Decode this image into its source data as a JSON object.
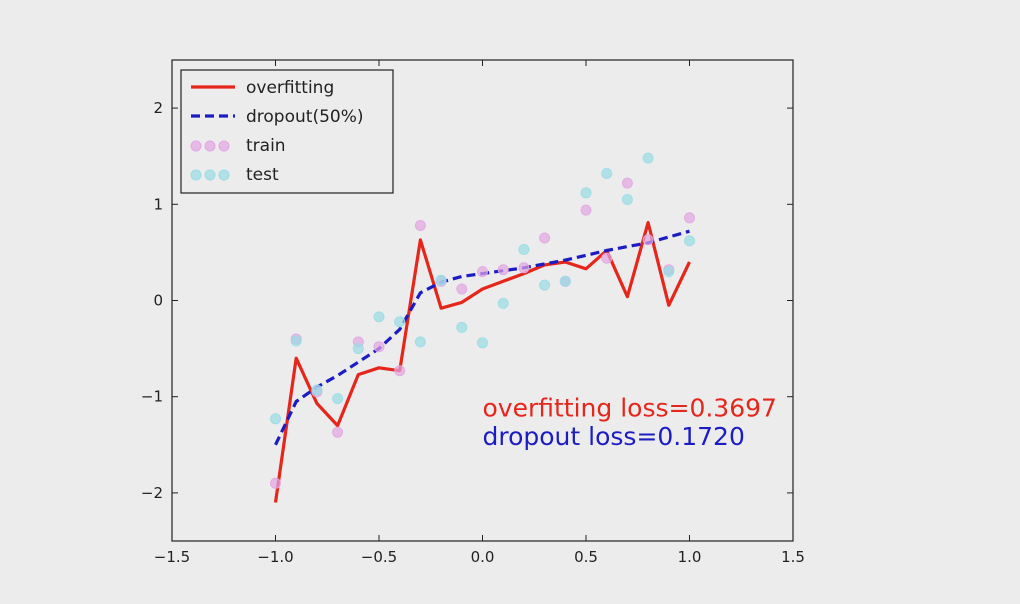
{
  "colors": {
    "background": "#ececec",
    "overfitting": "#e5261b",
    "dropout": "#1c1cc4",
    "train": "#e3a6e3",
    "test": "#99dde6"
  },
  "chart_data": {
    "type": "line",
    "xlim": [
      -1.5,
      1.5
    ],
    "ylim": [
      -2.5,
      2.5
    ],
    "x_ticks": [
      -1.5,
      -1.0,
      -0.5,
      0.0,
      0.5,
      1.0,
      1.5
    ],
    "x_tick_labels": [
      "−1.5",
      "−1.0",
      "−0.5",
      "0.0",
      "0.5",
      "1.0",
      "1.5"
    ],
    "y_ticks": [
      -2,
      -1,
      0,
      1,
      2
    ],
    "y_tick_labels": [
      "−2",
      "−1",
      "0",
      "1",
      "2"
    ],
    "grid": false,
    "legend_position": "top-left",
    "legend": [
      {
        "key": "overfitting",
        "label": "overfitting"
      },
      {
        "key": "dropout",
        "label": "dropout(50%)"
      },
      {
        "key": "train",
        "label": "train"
      },
      {
        "key": "test",
        "label": "test"
      }
    ],
    "series": [
      {
        "key": "overfitting",
        "name": "overfitting",
        "x": [
          -1.0,
          -0.9,
          -0.8,
          -0.7,
          -0.6,
          -0.5,
          -0.4,
          -0.3,
          -0.2,
          -0.1,
          0.0,
          0.1,
          0.2,
          0.3,
          0.4,
          0.5,
          0.6,
          0.7,
          0.8,
          0.9,
          1.0
        ],
        "y": [
          -2.1,
          -0.6,
          -1.07,
          -1.3,
          -0.77,
          -0.7,
          -0.73,
          0.63,
          -0.08,
          -0.02,
          0.12,
          0.2,
          0.28,
          0.37,
          0.4,
          0.33,
          0.52,
          0.04,
          0.81,
          -0.05,
          0.4
        ]
      },
      {
        "key": "dropout",
        "name": "dropout(50%)",
        "x": [
          -1.0,
          -0.9,
          -0.8,
          -0.7,
          -0.6,
          -0.5,
          -0.4,
          -0.3,
          -0.2,
          -0.1,
          0.0,
          0.1,
          0.2,
          0.3,
          0.4,
          0.5,
          0.6,
          0.7,
          0.8,
          0.9,
          1.0
        ],
        "y": [
          -1.5,
          -1.05,
          -0.9,
          -0.78,
          -0.64,
          -0.5,
          -0.3,
          0.08,
          0.19,
          0.25,
          0.28,
          0.31,
          0.34,
          0.38,
          0.42,
          0.47,
          0.52,
          0.56,
          0.6,
          0.66,
          0.72
        ]
      }
    ],
    "scatter": [
      {
        "key": "train",
        "name": "train",
        "x": [
          -1.0,
          -0.9,
          -0.8,
          -0.7,
          -0.6,
          -0.5,
          -0.4,
          -0.3,
          -0.2,
          -0.1,
          0.0,
          0.1,
          0.2,
          0.3,
          0.4,
          0.5,
          0.6,
          0.7,
          0.8,
          0.9,
          1.0
        ],
        "y": [
          -1.9,
          -0.4,
          -0.95,
          -1.37,
          -0.43,
          -0.48,
          -0.73,
          0.78,
          0.2,
          0.12,
          0.3,
          0.32,
          0.34,
          0.65,
          0.2,
          0.94,
          0.44,
          1.22,
          0.63,
          0.32,
          0.86
        ]
      },
      {
        "key": "test",
        "name": "test",
        "x": [
          -1.0,
          -0.9,
          -0.8,
          -0.7,
          -0.6,
          -0.5,
          -0.4,
          -0.3,
          -0.2,
          -0.1,
          0.0,
          0.1,
          0.2,
          0.3,
          0.4,
          0.5,
          0.6,
          0.7,
          0.8,
          0.9,
          1.0
        ],
        "y": [
          -1.23,
          -0.42,
          -0.93,
          -1.02,
          -0.5,
          -0.17,
          -0.22,
          -0.43,
          0.21,
          -0.28,
          -0.44,
          -0.03,
          0.53,
          0.16,
          0.2,
          1.12,
          1.32,
          1.05,
          1.48,
          0.3,
          0.62
        ]
      }
    ],
    "annotations": [
      {
        "key": "overfitting",
        "text": "overfitting loss=0.3697",
        "x": 0.0,
        "y": -1.1
      },
      {
        "key": "dropout",
        "text": "dropout loss=0.1720",
        "x": 0.0,
        "y": -1.4
      }
    ]
  }
}
